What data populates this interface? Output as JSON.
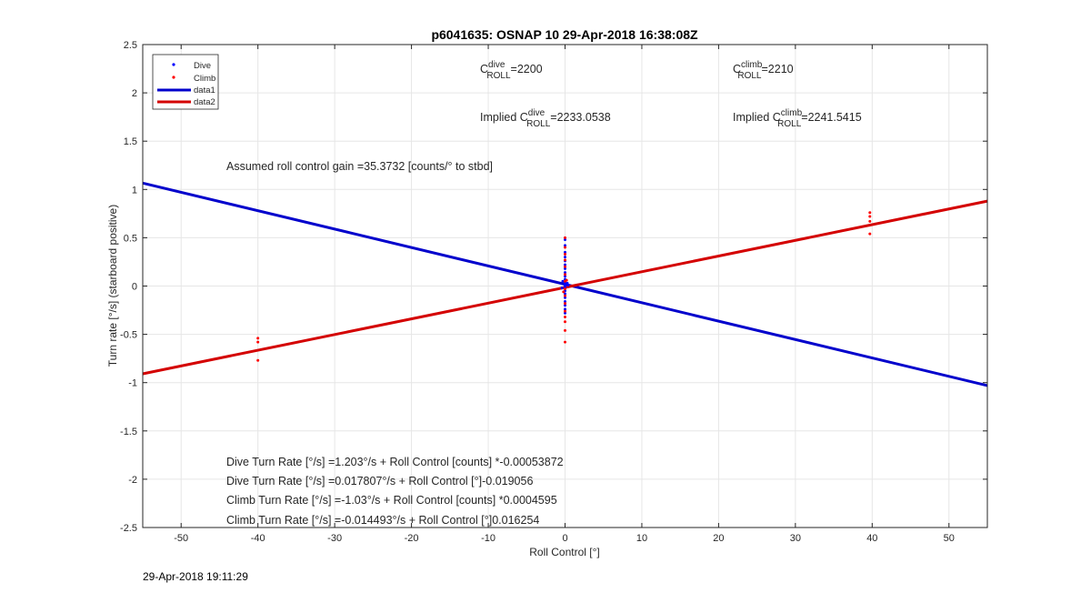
{
  "chart_data": {
    "type": "scatter",
    "title": "p6041635: OSNAP 10 29-Apr-2018 16:38:08Z",
    "xlabel": "Roll Control [°]",
    "ylabel": "Turn rate [°/s] (starboard positive)",
    "xlim": [
      -55,
      55
    ],
    "ylim": [
      -2.5,
      2.5
    ],
    "x_ticks": [
      -50,
      -40,
      -30,
      -20,
      -10,
      0,
      10,
      20,
      30,
      40,
      50
    ],
    "y_ticks": [
      -2.5,
      -2,
      -1.5,
      -1,
      -0.5,
      0,
      0.5,
      1,
      1.5,
      2,
      2.5
    ],
    "grid": true,
    "legend_position": "top-left",
    "legend": [
      "Dive",
      "Climb",
      "data1",
      "data2"
    ],
    "series": [
      {
        "name": "Dive",
        "kind": "points",
        "color": "#0000ff",
        "points": [
          [
            0,
            0.48
          ],
          [
            0,
            0.42
          ],
          [
            0,
            0.35
          ],
          [
            0,
            0.3
          ],
          [
            0,
            0.26
          ],
          [
            0,
            0.22
          ],
          [
            0,
            0.18
          ],
          [
            0,
            0.14
          ],
          [
            0,
            0.1
          ],
          [
            0,
            0.07
          ],
          [
            0,
            0.04
          ],
          [
            0,
            0.02
          ],
          [
            0,
            0.0
          ],
          [
            0,
            -0.02
          ],
          [
            0,
            -0.05
          ],
          [
            0,
            -0.08
          ],
          [
            0,
            -0.12
          ],
          [
            0,
            -0.16
          ],
          [
            0,
            -0.2
          ],
          [
            0,
            -0.24
          ],
          [
            0,
            -0.28
          ],
          [
            -0.3,
            0.05
          ],
          [
            0.3,
            0.03
          ],
          [
            -0.4,
            -0.02
          ],
          [
            0.4,
            0.01
          ]
        ]
      },
      {
        "name": "Climb",
        "kind": "points",
        "color": "#ff0000",
        "points": [
          [
            -40,
            -0.54
          ],
          [
            -40,
            -0.58
          ],
          [
            -40,
            -0.77
          ],
          [
            39.7,
            0.76
          ],
          [
            39.7,
            0.72
          ],
          [
            39.7,
            0.67
          ],
          [
            39.7,
            0.54
          ],
          [
            0,
            0.5
          ],
          [
            0,
            0.4
          ],
          [
            0,
            0.33
          ],
          [
            0,
            0.27
          ],
          [
            0,
            0.2
          ],
          [
            0,
            0.12
          ],
          [
            0,
            0.05
          ],
          [
            0,
            -0.03
          ],
          [
            0,
            -0.1
          ],
          [
            0,
            -0.18
          ],
          [
            0,
            -0.26
          ],
          [
            0,
            -0.32
          ],
          [
            0,
            -0.37
          ],
          [
            0,
            -0.46
          ],
          [
            0,
            -0.58
          ],
          [
            -0.2,
            -0.06
          ],
          [
            0.2,
            0.06
          ]
        ]
      },
      {
        "name": "data1",
        "kind": "line",
        "color": "#0000cc",
        "slope": -0.019056,
        "intercept": 0.017807
      },
      {
        "name": "data2",
        "kind": "line",
        "color": "#d40000",
        "slope": 0.016254,
        "intercept": -0.014493
      }
    ],
    "annotations": {
      "c_dive_pre": "C",
      "c_dive_sup": "dive",
      "c_dive_sub": "ROLL",
      "c_dive_val": "=2200",
      "c_climb_pre": "C",
      "c_climb_sup": "climb",
      "c_climb_sub": "ROLL",
      "c_climb_val": "=2210",
      "impl_dive_pre": "Implied C",
      "impl_dive_sup": "dive",
      "impl_dive_sub": "ROLL",
      "impl_dive_val": "=2233.0538",
      "impl_climb_pre": "Implied C",
      "impl_climb_sup": "climb",
      "impl_climb_sub": "ROLL",
      "impl_climb_val": "=2241.5415",
      "gain": "Assumed roll control gain =35.3732 [counts/° to stbd]",
      "eq1": "Dive Turn Rate [°/s] =1.203°/s + Roll Control [counts] *-0.00053872",
      "eq2": "Dive Turn Rate [°/s] =0.017807°/s + Roll Control [°]-0.019056",
      "eq3": "Climb Turn Rate [°/s] =-1.03°/s + Roll Control [counts] *0.0004595",
      "eq4": "Climb Turn Rate [°/s] =-0.014493°/s + Roll Control [°]0.016254"
    }
  },
  "footer_timestamp": "29-Apr-2018 19:11:29"
}
